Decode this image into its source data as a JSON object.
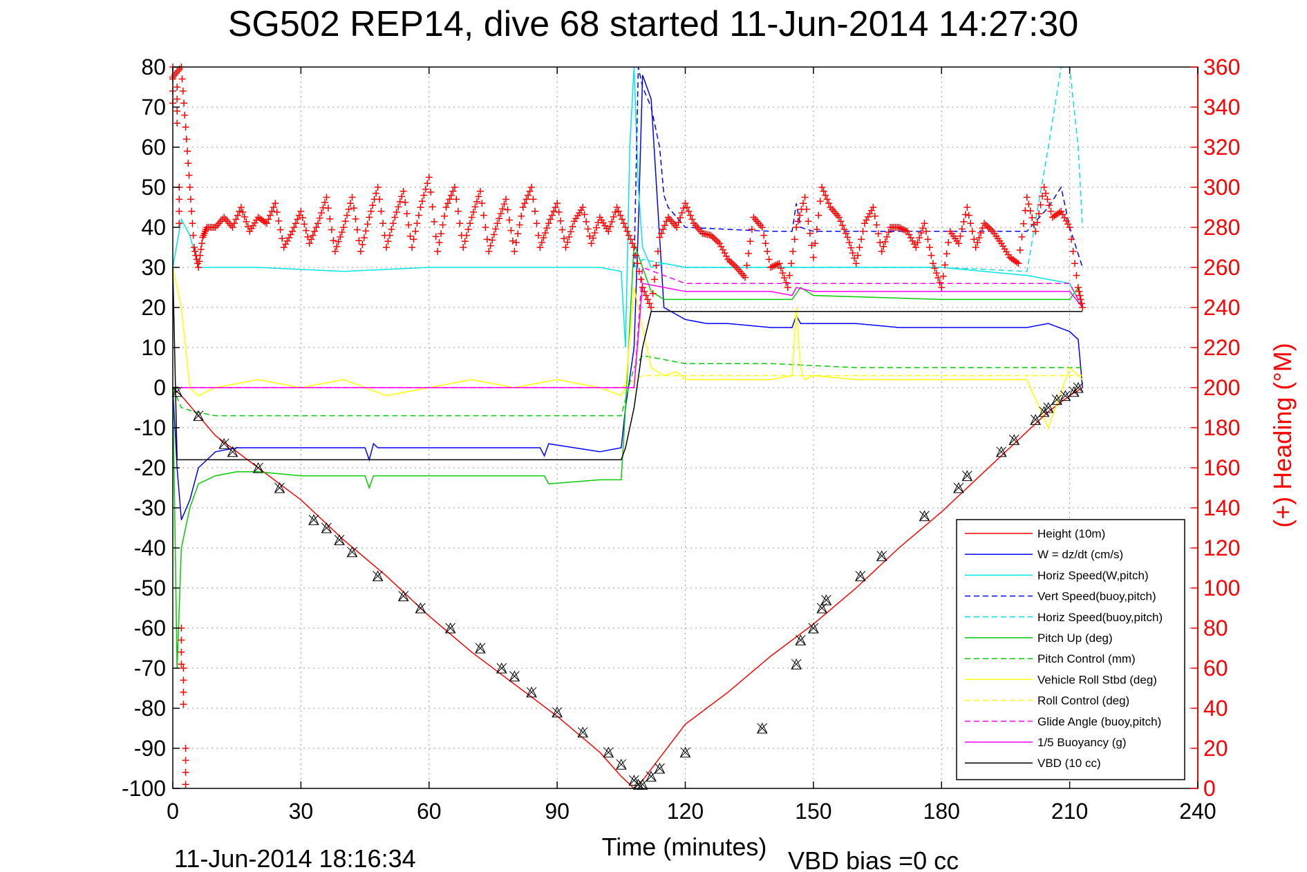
{
  "chart_data": {
    "type": "line",
    "title": "SG502 REP14, dive 68 started 11-Jun-2014 14:27:30",
    "xlabel": "Time (minutes)",
    "ylabel": "",
    "y2label": "(+) Heading (°M)",
    "xlim": [
      0,
      240
    ],
    "ylim": [
      -100,
      80
    ],
    "y2lim": [
      0,
      360
    ],
    "xticks": [
      "0",
      "30",
      "60",
      "90",
      "120",
      "150",
      "180",
      "210",
      "240"
    ],
    "yticks": [
      "80",
      "70",
      "60",
      "50",
      "40",
      "30",
      "20",
      "10",
      "0",
      "-10",
      "-20",
      "-30",
      "-40",
      "-50",
      "-60",
      "-70",
      "-80",
      "-90",
      "-100"
    ],
    "y2ticks": [
      "360",
      "340",
      "320",
      "300",
      "280",
      "260",
      "240",
      "220",
      "200",
      "180",
      "160",
      "140",
      "120",
      "100",
      "80",
      "60",
      "40",
      "20",
      "0"
    ],
    "grid": true,
    "legend_position": "bottom-right",
    "colors": {
      "height": "#ff0000",
      "w": "#0000ff",
      "horiz_speed": "#00e5e5",
      "pitch": "#00cc00",
      "roll": "#ffff00",
      "glide": "#ff00ff",
      "vbd": "#000000",
      "heading": "#ff0000"
    },
    "legend": [
      {
        "label": "Height (10m)",
        "color": "#ff0000",
        "style": "solid"
      },
      {
        "label": "W  = dz/dt (cm/s)",
        "color": "#0000ff",
        "style": "solid"
      },
      {
        "label": "Horiz Speed(W,pitch)",
        "color": "#00e5e5",
        "style": "solid"
      },
      {
        "label": "Vert Speed(buoy,pitch)",
        "color": "#0000ff",
        "style": "dashed"
      },
      {
        "label": "Horiz Speed(buoy,pitch)",
        "color": "#00e5e5",
        "style": "dashed"
      },
      {
        "label": "Pitch Up (deg)",
        "color": "#00cc00",
        "style": "solid"
      },
      {
        "label": "Pitch Control (mm)",
        "color": "#00cc00",
        "style": "dashed"
      },
      {
        "label": "Vehicle Roll Stbd (deg)",
        "color": "#ffff00",
        "style": "solid"
      },
      {
        "label": "Roll Control (deg)",
        "color": "#ffff00",
        "style": "dashed"
      },
      {
        "label": "Glide Angle (buoy,pitch)",
        "color": "#ff00ff",
        "style": "dashed"
      },
      {
        "label": "1/5 Buoyancy (g)",
        "color": "#ff00ff",
        "style": "solid"
      },
      {
        "label": "VBD (10 cc)",
        "color": "#000000",
        "style": "solid"
      }
    ],
    "series": [
      {
        "key": "height",
        "x": [
          0,
          2,
          10,
          20,
          30,
          40,
          50,
          60,
          70,
          80,
          90,
          100,
          105,
          108,
          110,
          115,
          120,
          130,
          140,
          150,
          160,
          170,
          180,
          190,
          200,
          205,
          210,
          213
        ],
        "y": [
          0,
          -2,
          -12,
          -20,
          -28,
          -38,
          -47,
          -57,
          -66,
          -74,
          -82,
          -91,
          -97,
          -100,
          -98,
          -91,
          -84,
          -76,
          -67,
          -59,
          -50,
          -40,
          -31,
          -21,
          -11,
          -6,
          -2,
          0
        ]
      },
      {
        "key": "w",
        "x": [
          0,
          1,
          2,
          4,
          6,
          10,
          15,
          20,
          30,
          45,
          46,
          47,
          48,
          60,
          75,
          86,
          87,
          88,
          100,
          105,
          106,
          108,
          109,
          110,
          112,
          115,
          120,
          125,
          130,
          140,
          145,
          146,
          147,
          150,
          160,
          170,
          180,
          190,
          200,
          205,
          210,
          212,
          213
        ],
        "y": [
          0,
          -20,
          -33,
          -28,
          -20,
          -16,
          -15,
          -15,
          -15,
          -15,
          -18,
          -14,
          -15,
          -15,
          -15,
          -15,
          -17,
          -14,
          -16,
          -15,
          -5,
          10,
          40,
          78,
          72,
          20,
          17,
          16,
          16,
          15,
          15,
          18,
          16,
          16,
          16,
          15,
          15,
          15,
          15,
          16,
          14,
          12,
          0
        ]
      },
      {
        "key": "horiz_speed",
        "x": [
          0,
          2,
          4,
          6,
          10,
          20,
          40,
          60,
          80,
          100,
          105,
          106,
          107,
          108,
          109,
          110,
          112,
          115,
          120,
          140,
          160,
          180,
          200,
          205,
          210,
          213
        ],
        "y": [
          30,
          42,
          38,
          30,
          30,
          30,
          29,
          30,
          30,
          30,
          29,
          10,
          60,
          80,
          50,
          35,
          30,
          31,
          30,
          30,
          30,
          30,
          28,
          27,
          26,
          20
        ]
      },
      {
        "key": "vert_speed_buoy",
        "x": [
          108,
          109,
          110,
          112,
          114,
          115,
          116,
          120,
          140,
          145,
          146,
          147,
          150,
          180,
          190,
          200,
          205,
          208,
          210,
          213
        ],
        "y": [
          30,
          80,
          75,
          70,
          60,
          48,
          45,
          40,
          39,
          39,
          46,
          40,
          39,
          39,
          39,
          39,
          45,
          50,
          40,
          30
        ]
      },
      {
        "key": "horiz_speed_buoy",
        "x": [
          108,
          110,
          115,
          120,
          140,
          160,
          180,
          200,
          205,
          208,
          210,
          211,
          212,
          213
        ],
        "y": [
          30,
          32,
          31,
          30,
          30,
          30,
          30,
          29,
          60,
          80,
          80,
          70,
          60,
          40
        ]
      },
      {
        "key": "pitch_up",
        "x": [
          0,
          1,
          2,
          4,
          6,
          10,
          15,
          18,
          20,
          30,
          45,
          46,
          47,
          60,
          87,
          88,
          100,
          105,
          106,
          108,
          110,
          112,
          115,
          120,
          140,
          145,
          147,
          150,
          180,
          200,
          205,
          210,
          212,
          213
        ],
        "y": [
          0,
          -70,
          -40,
          -30,
          -24,
          -22,
          -21,
          -21,
          -21,
          -22,
          -22,
          -25,
          -22,
          -22,
          -22,
          -24,
          -23,
          -23,
          -5,
          36,
          30,
          24,
          22,
          22,
          22,
          22,
          25,
          23,
          22,
          22,
          22,
          22,
          25,
          20
        ]
      },
      {
        "key": "pitch_control",
        "x": [
          0,
          2,
          5,
          10,
          20,
          40,
          60,
          80,
          100,
          105,
          108,
          110,
          115,
          120,
          140,
          160,
          180,
          200,
          205,
          210,
          213
        ],
        "y": [
          0,
          -5,
          -6,
          -7,
          -7,
          -7,
          -7,
          -7,
          -7,
          -7,
          5,
          8,
          7,
          6,
          6,
          5,
          5,
          5,
          5,
          5,
          5
        ]
      },
      {
        "key": "roll",
        "x": [
          0,
          2,
          4,
          6,
          10,
          20,
          30,
          40,
          50,
          60,
          70,
          80,
          90,
          100,
          105,
          106,
          108,
          110,
          112,
          115,
          118,
          120,
          130,
          140,
          145,
          146,
          147,
          148,
          150,
          160,
          180,
          190,
          200,
          205,
          210,
          213
        ],
        "y": [
          30,
          20,
          0,
          -2,
          0,
          2,
          0,
          2,
          -2,
          0,
          2,
          0,
          2,
          0,
          -2,
          0,
          25,
          15,
          5,
          3,
          4,
          2,
          2,
          2,
          3,
          20,
          5,
          2,
          3,
          2,
          2,
          2,
          2,
          -10,
          5,
          2
        ]
      },
      {
        "key": "roll_control",
        "x": [
          0,
          6,
          10,
          20,
          40,
          60,
          80,
          100,
          105,
          110,
          115,
          120,
          140,
          160,
          180,
          200,
          205,
          210,
          213
        ],
        "y": [
          0,
          0,
          0,
          0,
          0,
          0,
          0,
          0,
          0,
          3,
          3,
          3,
          3,
          3,
          3,
          3,
          3,
          3,
          3
        ]
      },
      {
        "key": "glide_angle",
        "x": [
          0,
          6,
          10,
          40,
          80,
          105,
          106,
          108,
          110,
          115,
          120,
          140,
          160,
          180,
          200,
          210,
          213
        ],
        "y": [
          0,
          0,
          0,
          0,
          0,
          0,
          0,
          0,
          30,
          28,
          26,
          26,
          26,
          26,
          26,
          26,
          20
        ]
      },
      {
        "key": "buoyancy",
        "x": [
          0,
          6,
          10,
          40,
          80,
          105,
          108,
          110,
          115,
          120,
          140,
          145,
          146,
          150,
          180,
          200,
          210,
          213
        ],
        "y": [
          0,
          0,
          0,
          0,
          0,
          0,
          0,
          26,
          25,
          24,
          24,
          23,
          25,
          24,
          24,
          24,
          24,
          20
        ]
      },
      {
        "key": "vbd",
        "x": [
          0,
          1,
          2,
          10,
          20,
          50,
          80,
          100,
          105,
          106,
          108,
          110,
          112,
          120,
          140,
          180,
          200,
          210,
          213
        ],
        "y": [
          30,
          -18,
          -18,
          -18,
          -18,
          -18,
          -18,
          -18,
          -18,
          -15,
          -5,
          10,
          19,
          19,
          19,
          19,
          19,
          19,
          19
        ]
      }
    ],
    "heading": {
      "x": [
        0,
        2,
        3,
        4,
        5,
        6,
        7,
        8,
        10,
        12,
        14,
        16,
        18,
        20,
        22,
        24,
        26,
        28,
        30,
        32,
        34,
        36,
        38,
        40,
        42,
        44,
        46,
        48,
        50,
        52,
        54,
        56,
        58,
        60,
        62,
        64,
        66,
        68,
        70,
        72,
        74,
        76,
        78,
        80,
        82,
        84,
        86,
        88,
        90,
        92,
        94,
        96,
        98,
        100,
        102,
        104,
        106,
        108,
        110,
        112,
        114,
        116,
        118,
        120,
        122,
        124,
        126,
        128,
        130,
        132,
        134,
        136,
        138,
        140,
        142,
        144,
        146,
        148,
        150,
        152,
        154,
        156,
        158,
        160,
        162,
        164,
        166,
        168,
        170,
        172,
        174,
        176,
        178,
        180,
        182,
        184,
        186,
        188,
        190,
        192,
        194,
        196,
        198,
        200,
        202,
        204,
        206,
        208,
        210,
        212,
        213
      ],
      "y": [
        355,
        360,
        330,
        300,
        270,
        260,
        275,
        280,
        280,
        285,
        280,
        290,
        278,
        285,
        282,
        292,
        270,
        278,
        288,
        272,
        282,
        295,
        268,
        280,
        295,
        268,
        285,
        300,
        270,
        285,
        298,
        270,
        290,
        305,
        268,
        290,
        300,
        270,
        285,
        298,
        268,
        282,
        294,
        268,
        290,
        300,
        270,
        282,
        292,
        270,
        283,
        290,
        272,
        285,
        278,
        290,
        280,
        270,
        250,
        240,
        275,
        285,
        280,
        292,
        282,
        277,
        276,
        272,
        264,
        260,
        255,
        285,
        280,
        260,
        262,
        250,
        280,
        295,
        265,
        300,
        290,
        285,
        275,
        262,
        282,
        290,
        268,
        280,
        280,
        278,
        270,
        282,
        262,
        250,
        278,
        272,
        290,
        270,
        282,
        278,
        272,
        265,
        262,
        295,
        278,
        300,
        285,
        288,
        280,
        250,
        240
      ],
      "start_markers_x": [
        0,
        1,
        1.5,
        2,
        2.5,
        3
      ],
      "start_markers_y": [
        360,
        350,
        300,
        80,
        60,
        20
      ]
    },
    "markers": {
      "x": [
        1,
        6,
        12,
        14,
        20,
        25,
        33,
        36,
        39,
        42,
        48,
        54,
        58,
        65,
        72,
        77,
        80,
        84,
        90,
        96,
        102,
        105,
        108,
        109,
        110,
        112,
        114,
        120,
        138,
        146,
        147,
        150,
        152,
        153,
        161,
        166,
        176,
        184,
        186,
        194,
        197,
        202,
        204,
        205,
        207,
        209,
        211,
        212
      ],
      "y": [
        -1,
        -7,
        -14,
        -16,
        -20,
        -25,
        -33,
        -35,
        -38,
        -41,
        -47,
        -52,
        -55,
        -60,
        -65,
        -70,
        -72,
        -76,
        -81,
        -86,
        -91,
        -94,
        -98,
        -99,
        -99,
        -97,
        -95,
        -91,
        -85,
        -69,
        -63,
        -60,
        -55,
        -53,
        -47,
        -42,
        -32,
        -25,
        -22,
        -16,
        -13,
        -8,
        -6,
        -5,
        -3,
        -2,
        -1,
        0
      ]
    }
  },
  "footer": {
    "timestamp": "11-Jun-2014 18:16:34",
    "vbd_bias": "VBD bias =0 cc"
  }
}
